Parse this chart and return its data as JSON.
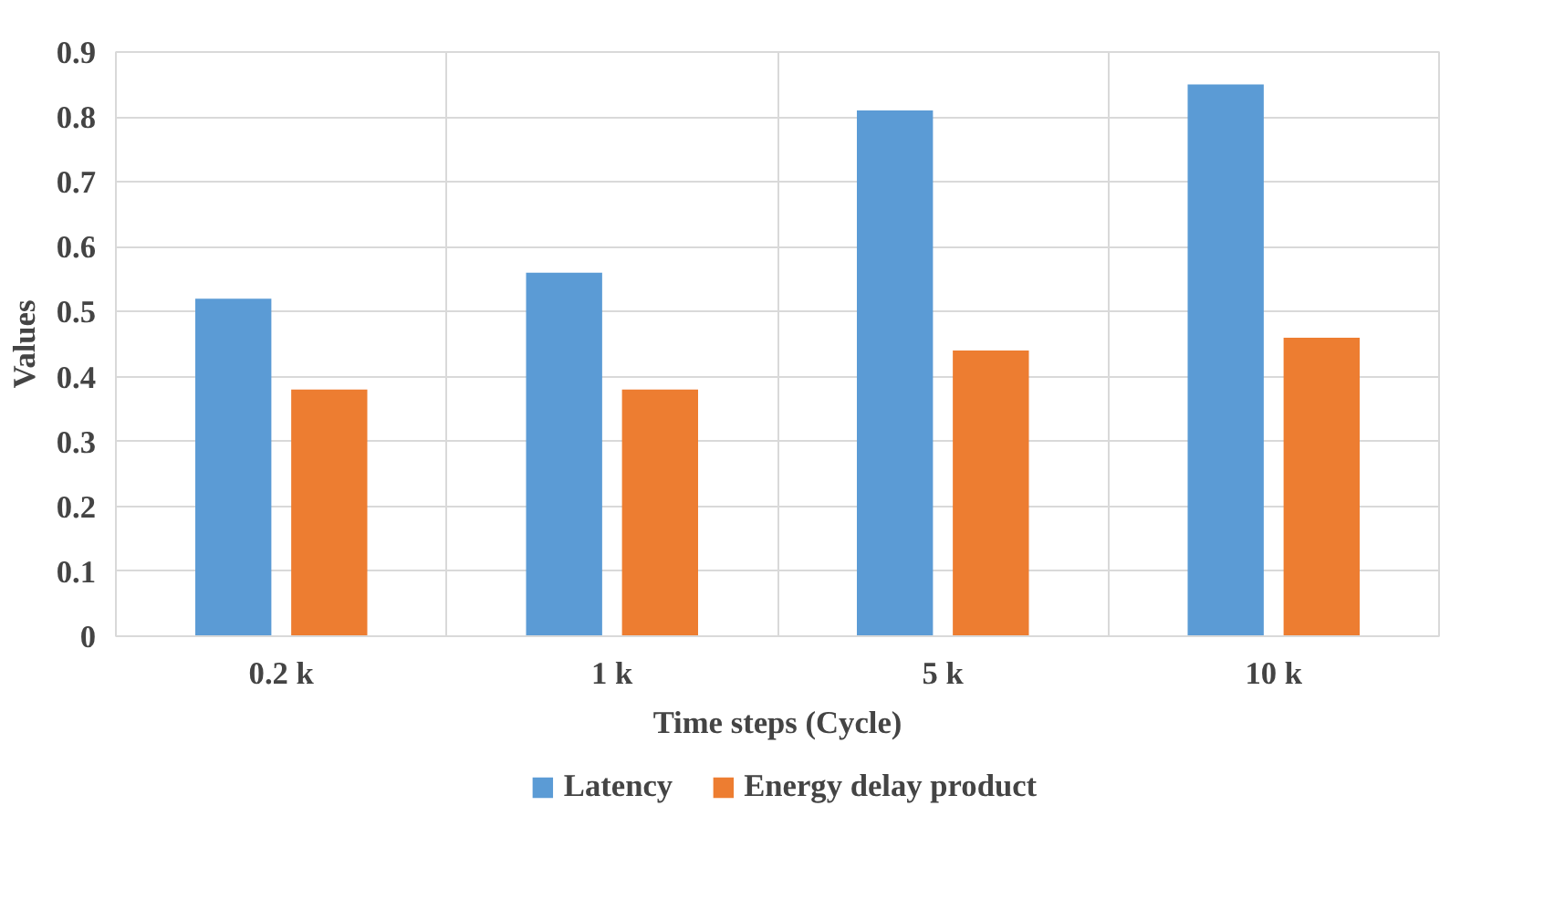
{
  "chart_data": {
    "type": "bar",
    "xlabel": "Time steps (Cycle)",
    "ylabel": "Values",
    "categories": [
      "0.2 k",
      "1 k",
      "5 k",
      "10 k"
    ],
    "series": [
      {
        "name": "Latency",
        "color": "#5b9bd5",
        "values": [
          0.52,
          0.56,
          0.81,
          0.85
        ]
      },
      {
        "name": "Energy delay product",
        "color": "#ed7d31",
        "values": [
          0.38,
          0.38,
          0.44,
          0.46
        ]
      }
    ],
    "ylim": [
      0,
      0.9
    ],
    "yticks": [
      0,
      0.1,
      0.2,
      0.3,
      0.4,
      0.5,
      0.6,
      0.7,
      0.8,
      0.9
    ],
    "grid": true,
    "legend": "bottom"
  }
}
